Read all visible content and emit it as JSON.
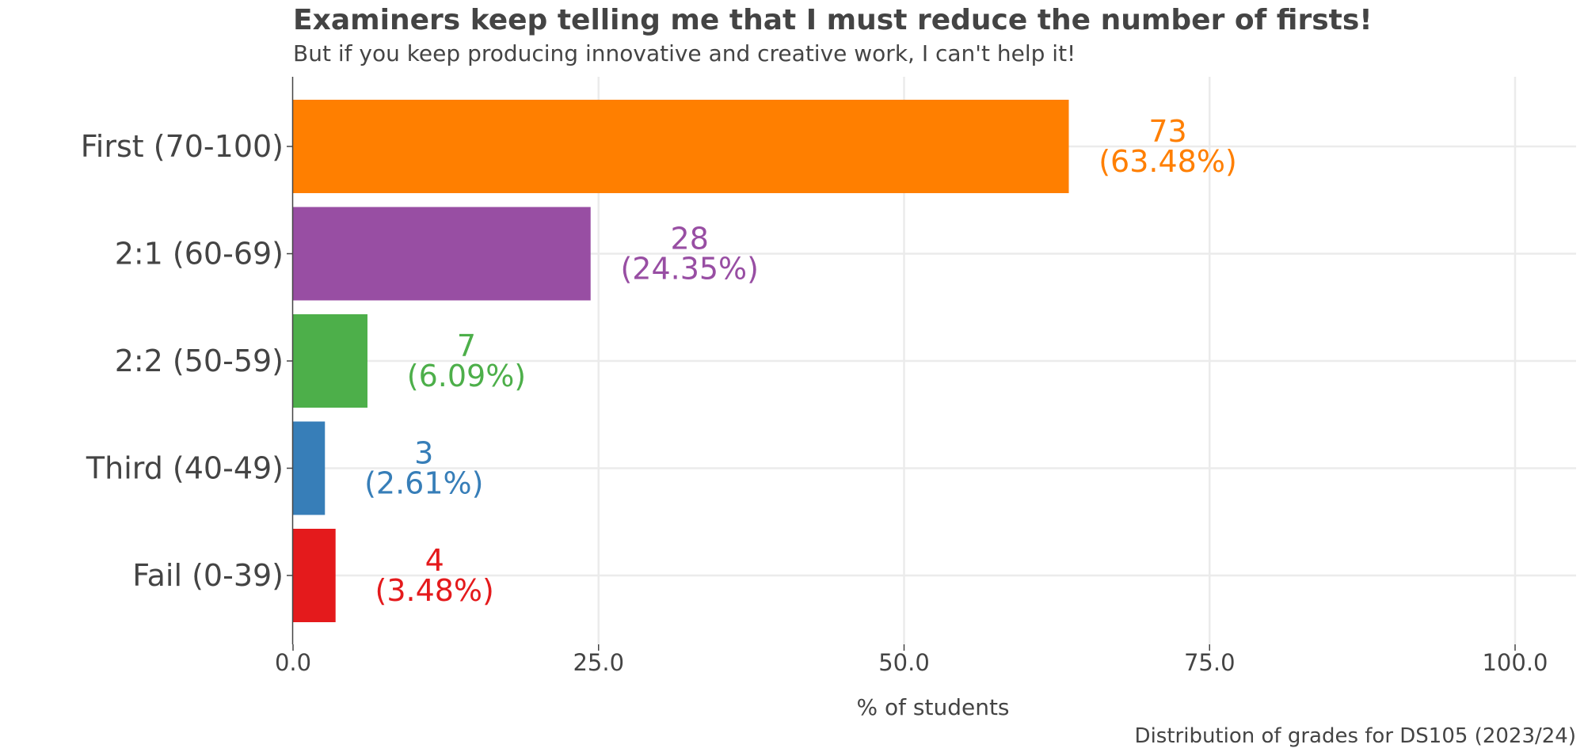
{
  "chart_data": {
    "type": "bar",
    "orientation": "horizontal",
    "title": "Examiners keep telling me that I must reduce the number of firsts!",
    "subtitle": "But if you keep producing innovative and creative work, I can't help it!",
    "caption": "Distribution of grades for DS105 (2023/24)",
    "xlabel": "% of students",
    "ylabel": "",
    "xlim": [
      0,
      105
    ],
    "xticks": [
      "0.0",
      "25.0",
      "50.0",
      "75.0",
      "100.0"
    ],
    "xtick_values": [
      0,
      25,
      50,
      75,
      100
    ],
    "grid": true,
    "legend": "none",
    "categories": [
      "First (70-100)",
      "2:1 (60-69)",
      "2:2 (50-59)",
      "Third (40-49)",
      "Fail (0-39)"
    ],
    "counts": [
      "73",
      "28",
      "7",
      "3",
      "4"
    ],
    "values": [
      63.48,
      24.35,
      6.09,
      2.61,
      3.48
    ],
    "percent_labels": [
      "(63.48%)",
      "(24.35%)",
      "(6.09%)",
      "(2.61%)",
      "(3.48%)"
    ],
    "colors": [
      "#ff7f00",
      "#984ea3",
      "#4daf4a",
      "#377eb8",
      "#e41a1c"
    ]
  }
}
